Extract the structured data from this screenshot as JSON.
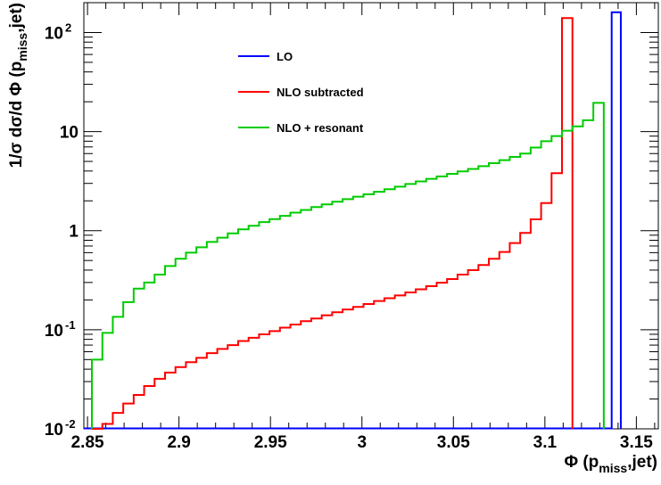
{
  "chart_data": {
    "type": "line",
    "title": "",
    "xlabel_main": "Φ (p",
    "xlabel_sub": "miss",
    "xlabel_end": ",jet)",
    "ylabel_main": "1/σ dσ/d Φ (p",
    "ylabel_sub": "miss",
    "ylabel_end": ",jet)",
    "xlim": [
      2.848,
      3.162
    ],
    "ylim": [
      0.01,
      200
    ],
    "yscale": "log",
    "grid": false,
    "legend_position": "top-left",
    "x_ticks": [
      {
        "value": 2.85,
        "label": "2.85"
      },
      {
        "value": 2.9,
        "label": "2.9"
      },
      {
        "value": 2.95,
        "label": "2.95"
      },
      {
        "value": 3.0,
        "label": "3"
      },
      {
        "value": 3.05,
        "label": "3.05"
      },
      {
        "value": 3.1,
        "label": "3.1"
      },
      {
        "value": 3.15,
        "label": "3.15"
      }
    ],
    "y_ticks": [
      {
        "value": 0.01,
        "base": "10",
        "exp": "-2"
      },
      {
        "value": 0.1,
        "base": "10",
        "exp": "-1"
      },
      {
        "value": 1,
        "base": "1",
        "exp": ""
      },
      {
        "value": 10,
        "base": "10",
        "exp": ""
      },
      {
        "value": 100,
        "base": "10",
        "exp": "2"
      }
    ],
    "series": [
      {
        "name": "LO",
        "color": "#0000ff",
        "bins": [
          [
            3.1365,
            3.1415,
            160
          ]
        ]
      },
      {
        "name": "NLO subtracted",
        "color": "#ff0000",
        "bin_start": 2.8524,
        "bin_width": 0.00571,
        "values": [
          0.0095,
          0.0112,
          0.0145,
          0.018,
          0.022,
          0.027,
          0.032,
          0.037,
          0.042,
          0.047,
          0.052,
          0.058,
          0.064,
          0.07,
          0.077,
          0.083,
          0.09,
          0.097,
          0.105,
          0.113,
          0.122,
          0.13,
          0.14,
          0.15,
          0.16,
          0.17,
          0.182,
          0.195,
          0.208,
          0.222,
          0.238,
          0.256,
          0.275,
          0.298,
          0.325,
          0.36,
          0.4,
          0.45,
          0.52,
          0.61,
          0.75,
          0.95,
          1.3,
          1.9,
          3.8,
          140
        ]
      },
      {
        "name": "NLO + resonant",
        "color": "#00cc00",
        "bin_start": 2.8524,
        "bin_width": 0.00571,
        "values": [
          0.05,
          0.093,
          0.135,
          0.19,
          0.26,
          0.3,
          0.36,
          0.44,
          0.52,
          0.6,
          0.68,
          0.77,
          0.85,
          0.94,
          1.03,
          1.12,
          1.22,
          1.31,
          1.41,
          1.52,
          1.62,
          1.73,
          1.84,
          1.96,
          2.08,
          2.2,
          2.33,
          2.47,
          2.62,
          2.78,
          2.96,
          3.14,
          3.33,
          3.53,
          3.74,
          3.96,
          4.2,
          4.48,
          4.8,
          5.15,
          5.55,
          6.0,
          6.9,
          8.0,
          9.0,
          10.2,
          11.3,
          13.0,
          19.5
        ]
      }
    ]
  }
}
